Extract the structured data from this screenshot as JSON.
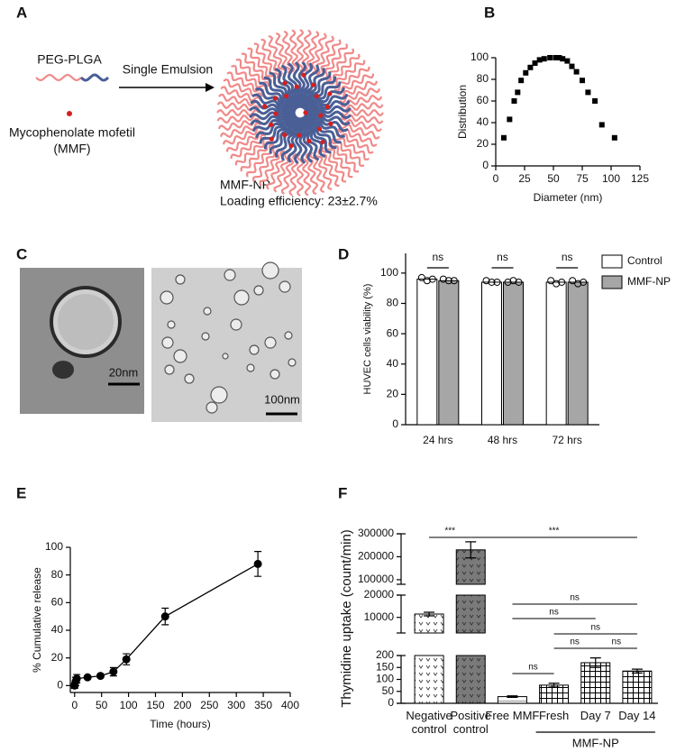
{
  "panel_labels": [
    "A",
    "B",
    "C",
    "D",
    "E",
    "F"
  ],
  "schematic": {
    "polymer": "PEG-PLGA",
    "process": "Single Emulsion",
    "drug": [
      "Mycophenolate mofetil",
      "(MMF)"
    ],
    "product": "MMF-NP",
    "loading": "Loading efficiency: 23±2.7%"
  },
  "micrographs": {
    "scale_bars": [
      "20nm",
      "100nm"
    ]
  },
  "chart_data": [
    {
      "type": "scatter",
      "xlabel": "Diameter (nm)",
      "ylabel": "Distribution",
      "x": [
        7,
        12,
        16,
        19,
        22,
        26,
        30,
        34,
        38,
        42,
        47,
        52,
        55,
        58,
        62,
        66,
        70,
        75,
        80,
        86,
        92,
        103
      ],
      "values": [
        26,
        43,
        60,
        68,
        79,
        86,
        91,
        95,
        98,
        99,
        100,
        100,
        100,
        99,
        97,
        92,
        87,
        79,
        68,
        60,
        38,
        26
      ],
      "color": "#000000",
      "xlim": [
        0,
        125
      ],
      "ylim": [
        0,
        100
      ],
      "xticks": [
        0,
        25,
        50,
        75,
        100,
        125
      ],
      "yticks": [
        0,
        20,
        40,
        60,
        80,
        100
      ]
    },
    {
      "type": "bar",
      "ylabel": "HUVEC cells viability (%)",
      "categories": [
        "24 hrs",
        "48 hrs",
        "72 hrs"
      ],
      "series": [
        {
          "name": "Control",
          "color": "#ffffff",
          "values": [
            96,
            94,
            94
          ],
          "points": [
            [
              97,
              95,
              96
            ],
            [
              95,
              94,
              94
            ],
            [
              95,
              93,
              94
            ]
          ]
        },
        {
          "name": "MMF-NP",
          "color": "#a6a6a6",
          "values": [
            95,
            94,
            94
          ],
          "points": [
            [
              96,
              95,
              95
            ],
            [
              94,
              95,
              94
            ],
            [
              95,
              93,
              94
            ]
          ]
        }
      ],
      "ylim": [
        0,
        113
      ],
      "yticks": [
        0,
        20,
        40,
        60,
        80,
        100
      ],
      "annotations": [
        "ns",
        "ns",
        "ns"
      ]
    },
    {
      "type": "line",
      "xlabel": "Time (hours)",
      "ylabel": "% Cumulative release",
      "x": [
        0,
        2,
        4,
        24,
        48,
        72,
        96,
        168,
        340
      ],
      "values": [
        0,
        3,
        5,
        6,
        7,
        10,
        19,
        50,
        88
      ],
      "errors": [
        2,
        3,
        3,
        1,
        1,
        3,
        4,
        6,
        9
      ],
      "color": "#000000",
      "xlim": [
        -8,
        400
      ],
      "ylim": [
        -5,
        100
      ],
      "xticks": [
        0,
        50,
        100,
        150,
        200,
        250,
        300,
        350,
        400
      ],
      "yticks": [
        0,
        20,
        40,
        60,
        80,
        100
      ]
    },
    {
      "type": "broken-bar",
      "ylabel": "Thymidine uptake (count/min)",
      "categories": [
        "Negative control",
        "Positive control",
        "Free MMF",
        "Fresh",
        "Day 7",
        "Day 14"
      ],
      "values": [
        11500,
        230000,
        28,
        76,
        170,
        135
      ],
      "errors": [
        800,
        35000,
        3,
        8,
        20,
        8
      ],
      "segments": [
        {
          "ylim": [
            0,
            200
          ],
          "yticks": [
            0,
            50,
            100,
            150,
            200
          ]
        },
        {
          "ylim": [
            3000,
            20000
          ],
          "yticks": [
            10000,
            20000
          ]
        },
        {
          "ylim": [
            80000,
            300000
          ],
          "yticks": [
            100000,
            200000,
            300000
          ]
        }
      ],
      "group_label": "MMF-NP",
      "annotations": [
        "***",
        "***",
        "ns",
        "ns",
        "ns",
        "ns",
        "ns",
        "ns"
      ]
    }
  ]
}
